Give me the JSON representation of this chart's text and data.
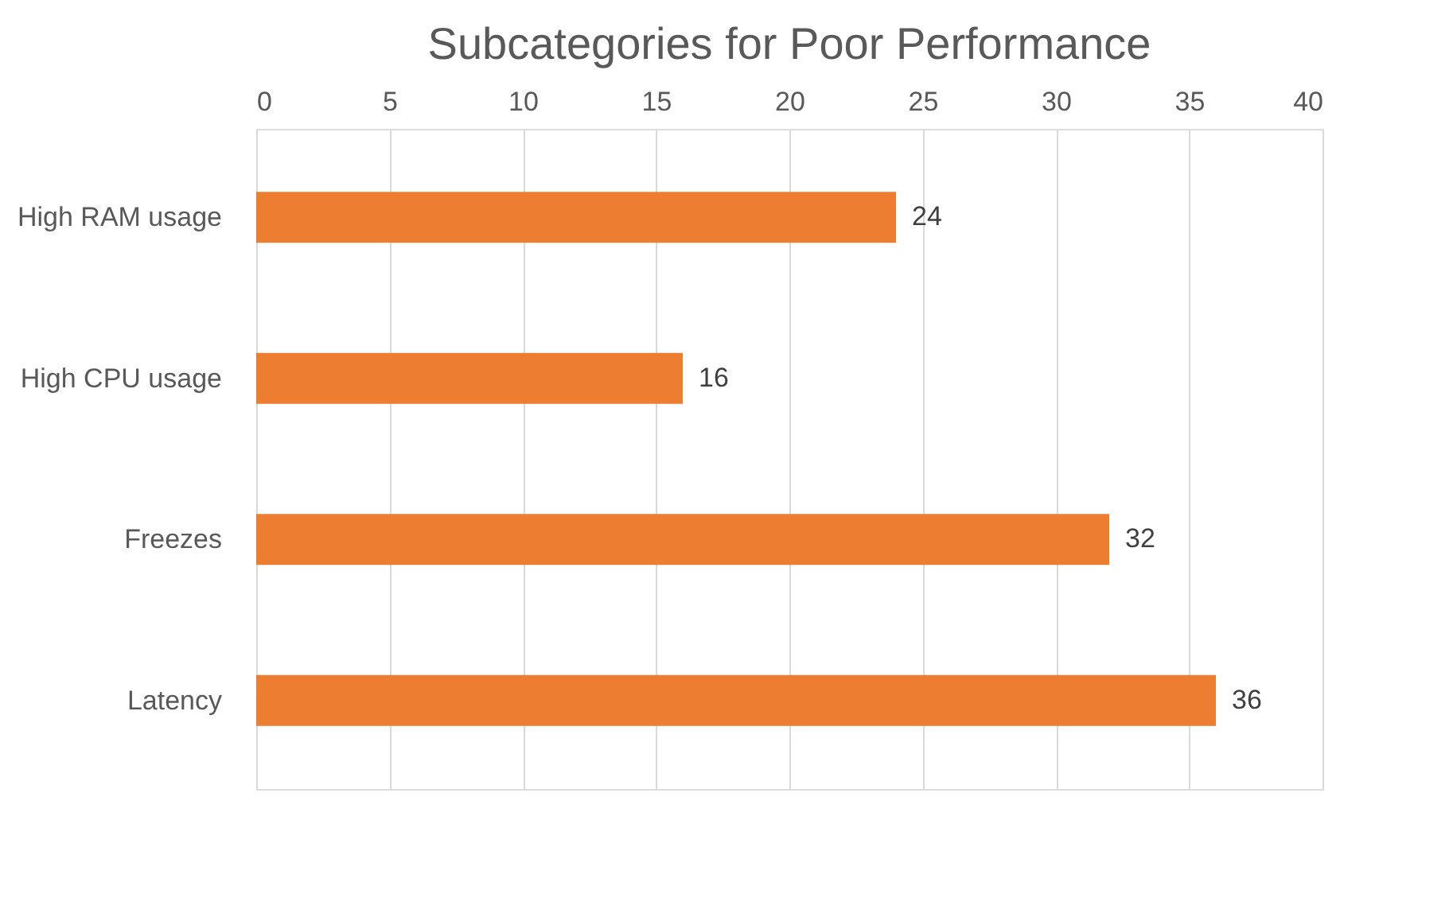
{
  "chart_data": {
    "type": "bar",
    "orientation": "horizontal",
    "title": "Subcategories for Poor Performance",
    "categories": [
      "High RAM usage",
      "High CPU usage",
      "Freezes",
      "Latency"
    ],
    "values": [
      24,
      16,
      32,
      36
    ],
    "color": "#ed7d31",
    "xlim": [
      0,
      40
    ],
    "xticks": [
      0,
      5,
      10,
      15,
      20,
      25,
      30,
      35,
      40
    ],
    "grid": "x",
    "data_labels": true
  }
}
